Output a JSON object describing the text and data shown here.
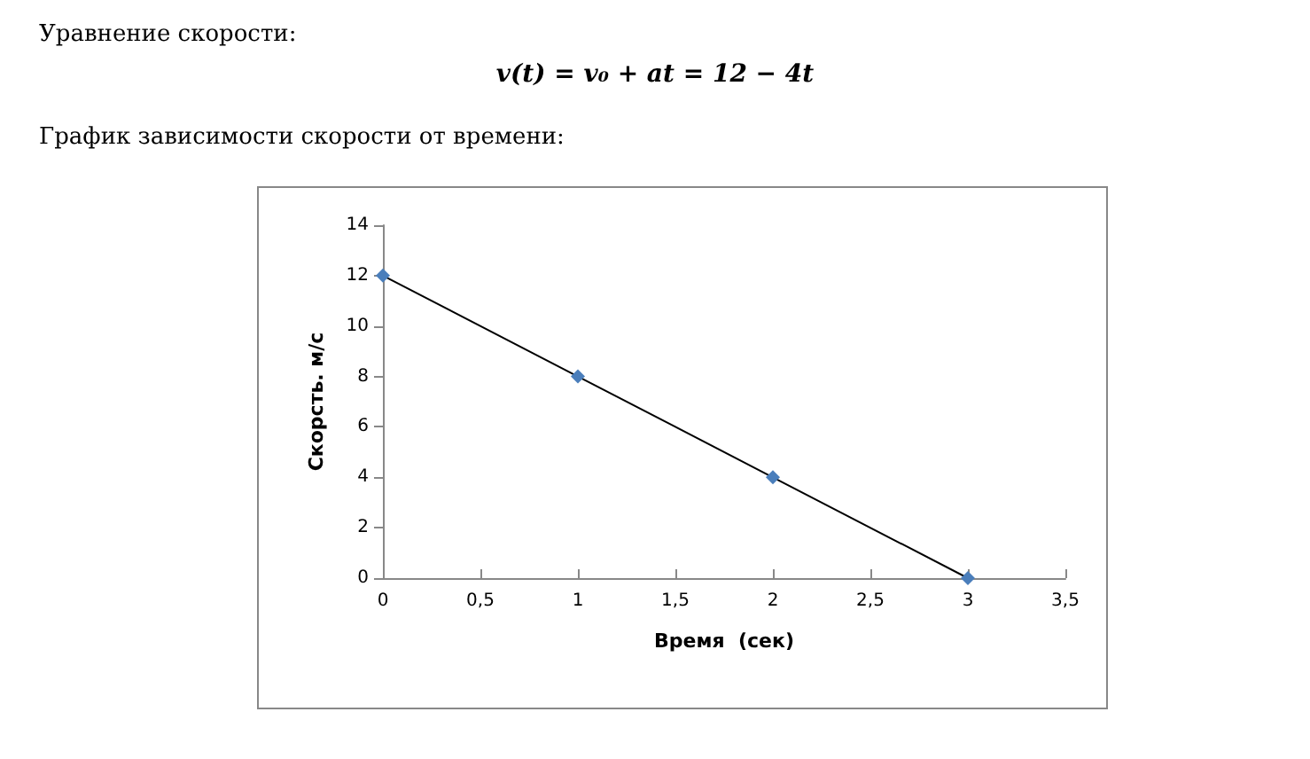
{
  "chart_data": {
    "type": "line",
    "title": "Уравнение скорости:",
    "subtitle": "v(t) = v₀ + at = 12 − 4t",
    "annotations": [
      "График зависимости скорости от времени:"
    ],
    "xlabel": "Время  (сек)",
    "ylabel": "Скорсть. м/с",
    "x": [
      0,
      1,
      2,
      3
    ],
    "series": [
      {
        "color": "#4a7ebb",
        "values": [
          12,
          8,
          4,
          0
        ]
      }
    ],
    "xlim": [
      0,
      3.5
    ],
    "xticks": [
      0,
      {
        "value": 0.5,
        "label": "0,5"
      },
      1,
      {
        "value": 1.5,
        "label": "1,5"
      },
      2,
      {
        "value": 2.5,
        "label": "2,5"
      },
      3,
      {
        "value": 3.5,
        "label": "3,5"
      }
    ],
    "ylim": [
      0,
      14
    ],
    "yticks": [
      0,
      2,
      4,
      6,
      8,
      10,
      12,
      14
    ],
    "grid": false,
    "marker": "diamond",
    "line_style": "solid"
  }
}
